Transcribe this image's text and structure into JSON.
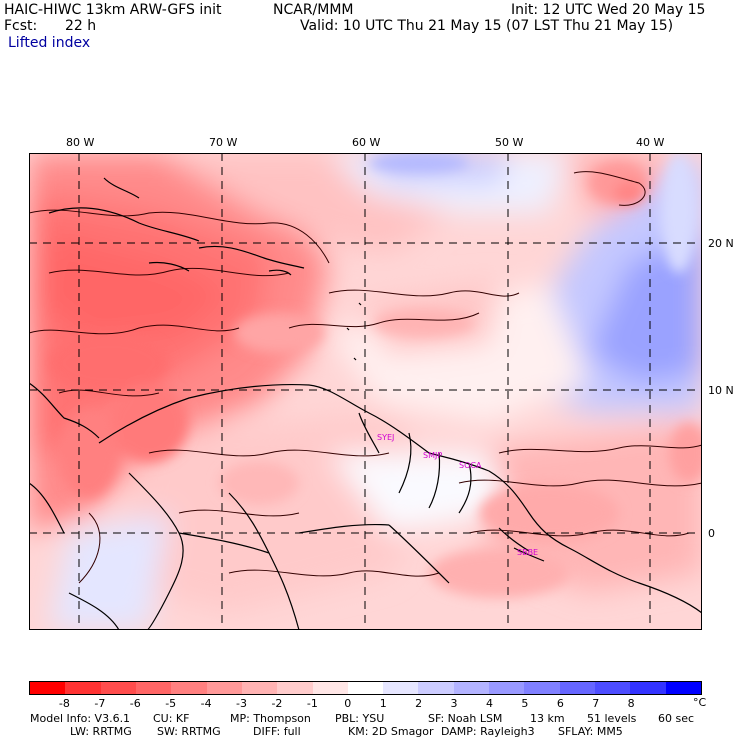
{
  "header": {
    "model_title": "HAIC-HIWC 13km ARW-GFS init",
    "org": "NCAR/MMM",
    "init": "Init: 12 UTC Wed 20 May 15",
    "fcst_label": "Fcst:",
    "fcst_value": "22 h",
    "valid": "Valid: 10 UTC Thu 21 May 15 (07 LST Thu 21 May 15)",
    "field": "Lifted index"
  },
  "map": {
    "lon_labels": [
      "80 W",
      "70 W",
      "60 W",
      "50 W",
      "40 W"
    ],
    "lat_labels": [
      "20 N",
      "10 N",
      "0"
    ],
    "stations": [
      "SYEJ",
      "SMJP",
      "SOCA",
      "SBBE"
    ],
    "station_color": "#d000d0"
  },
  "colorbar": {
    "colors": [
      "#ff0000",
      "#ff3333",
      "#ff4d4d",
      "#ff6666",
      "#ff8080",
      "#ff9999",
      "#ffb3b3",
      "#ffcccc",
      "#ffe6e6",
      "#ffffff",
      "#e6e6ff",
      "#ccccff",
      "#b3b3ff",
      "#9999ff",
      "#8080ff",
      "#6666ff",
      "#4d4dff",
      "#3333ff",
      "#0000ff"
    ],
    "labels": [
      "-8",
      "-7",
      "-6",
      "-5",
      "-4",
      "-3",
      "-2",
      "-1",
      "0",
      "1",
      "2",
      "3",
      "4",
      "5",
      "6",
      "7",
      "8"
    ],
    "unit": "°C"
  },
  "footer": {
    "line1": [
      "Model Info: V3.6.1",
      "CU: KF",
      "MP: Thompson",
      "PBL: YSU",
      "SF: Noah LSM",
      "13 km",
      "51 levels",
      "60 sec"
    ],
    "line2": [
      "LW: RRTMG",
      "SW: RRTMG",
      "DIFF: full",
      "KM: 2D Smagor",
      "DAMP: Rayleigh3",
      "SFLAY: MM5"
    ]
  }
}
